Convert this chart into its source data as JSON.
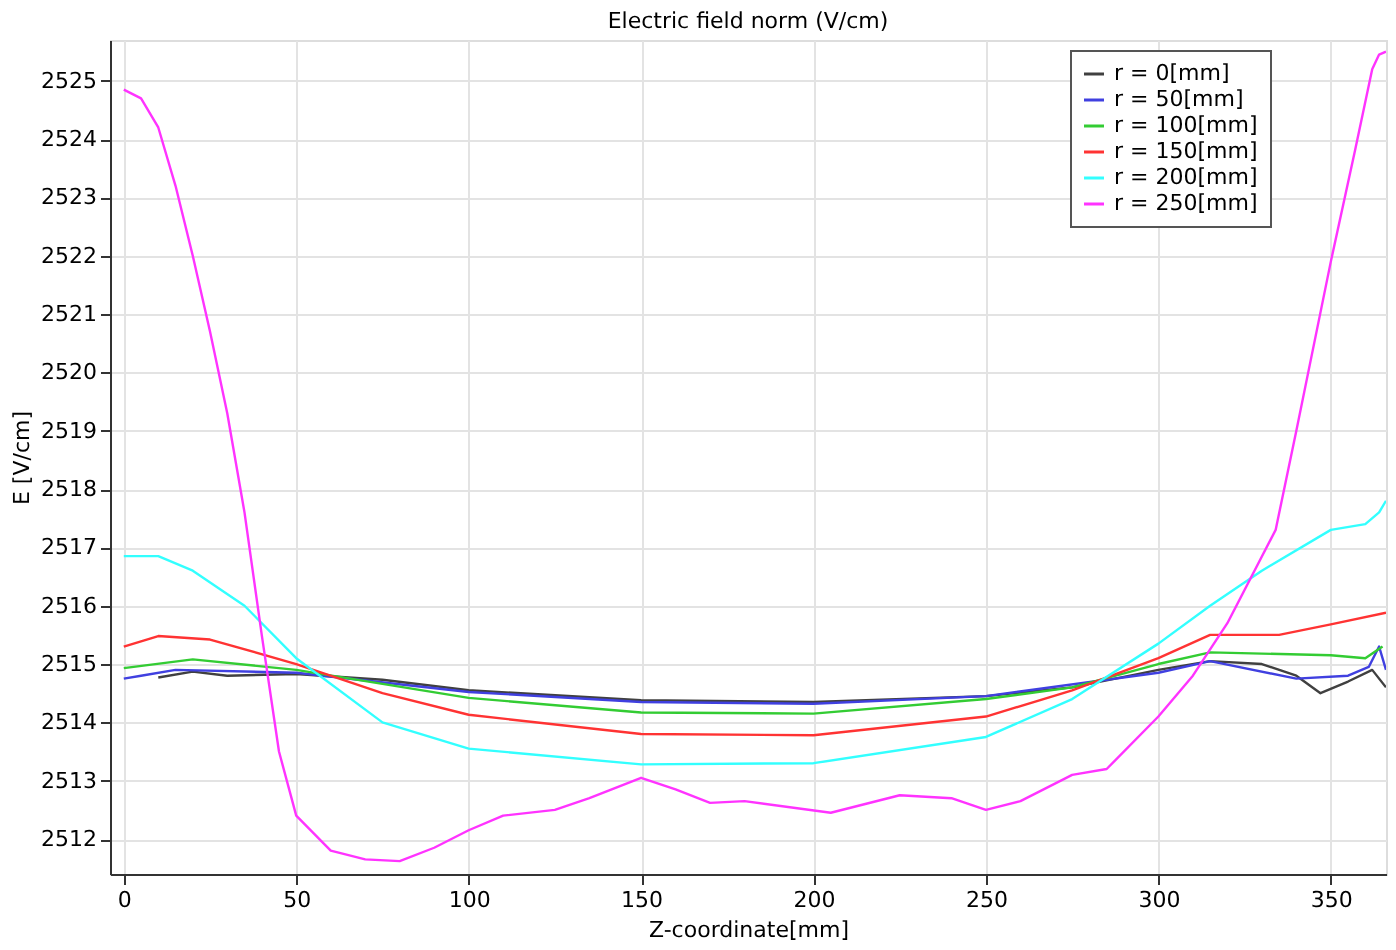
{
  "chart_data": {
    "type": "line",
    "title": "Electric field norm (V/cm)",
    "xlabel": "Z-coordinate[mm]",
    "ylabel": "E [V/cm]",
    "xlim": [
      -4,
      366
    ],
    "xticks": [
      0,
      50,
      100,
      150,
      200,
      250,
      300,
      350
    ],
    "ylim": [
      2511.4,
      2525.7
    ],
    "yticks": [
      2512,
      2513,
      2514,
      2515,
      2516,
      2517,
      2518,
      2519,
      2520,
      2521,
      2522,
      2523,
      2524,
      2525
    ],
    "grid": true,
    "legend": "top right",
    "line_style": "solid",
    "marker": "none",
    "series": [
      {
        "name": "r = 0[mm]",
        "color": "#404040",
        "x": [
          10,
          20,
          30,
          50,
          75,
          100,
          150,
          200,
          250,
          275,
          300,
          315,
          330,
          340,
          347,
          355,
          362,
          366
        ],
        "values": [
          2514.77,
          2514.87,
          2514.8,
          2514.83,
          2514.73,
          2514.55,
          2514.38,
          2514.35,
          2514.45,
          2514.6,
          2514.9,
          2515.05,
          2515.0,
          2514.8,
          2514.5,
          2514.7,
          2514.9,
          2514.6
        ]
      },
      {
        "name": "r = 50[mm]",
        "color": "#4040e0",
        "x": [
          0,
          5,
          15,
          50,
          100,
          150,
          200,
          250,
          300,
          315,
          340,
          355,
          361,
          364,
          366
        ],
        "values": [
          2514.75,
          2514.8,
          2514.9,
          2514.85,
          2514.52,
          2514.35,
          2514.32,
          2514.45,
          2514.85,
          2515.05,
          2514.75,
          2514.8,
          2514.95,
          2515.3,
          2514.9
        ]
      },
      {
        "name": "r = 100[mm]",
        "color": "#33cc33",
        "x": [
          0,
          20,
          50,
          100,
          150,
          200,
          250,
          275,
          300,
          315,
          350,
          360,
          365
        ],
        "values": [
          2514.93,
          2515.08,
          2514.9,
          2514.42,
          2514.17,
          2514.15,
          2514.4,
          2514.6,
          2515.0,
          2515.2,
          2515.15,
          2515.1,
          2515.3
        ]
      },
      {
        "name": "r = 150[mm]",
        "color": "#ff3333",
        "x": [
          0,
          10,
          25,
          50,
          75,
          100,
          150,
          200,
          250,
          275,
          300,
          315,
          335,
          350,
          366
        ],
        "values": [
          2515.3,
          2515.48,
          2515.42,
          2515.0,
          2514.5,
          2514.13,
          2513.8,
          2513.78,
          2514.1,
          2514.55,
          2515.1,
          2515.5,
          2515.5,
          2515.68,
          2515.88
        ]
      },
      {
        "name": "r = 200[mm]",
        "color": "#33ffff",
        "x": [
          0,
          10,
          20,
          35,
          50,
          75,
          100,
          150,
          200,
          250,
          275,
          300,
          315,
          330,
          350,
          360,
          364,
          366
        ],
        "values": [
          2516.85,
          2516.85,
          2516.6,
          2516.0,
          2515.1,
          2514.0,
          2513.55,
          2513.28,
          2513.3,
          2513.75,
          2514.4,
          2515.35,
          2516.0,
          2516.6,
          2517.3,
          2517.4,
          2517.6,
          2517.8
        ]
      },
      {
        "name": "r = 250[mm]",
        "color": "#ff33ff",
        "x": [
          0,
          5,
          10,
          15,
          20,
          25,
          30,
          35,
          40,
          45,
          50,
          60,
          70,
          80,
          90,
          100,
          110,
          125,
          135,
          150,
          160,
          170,
          180,
          205,
          225,
          240,
          250,
          260,
          275,
          285,
          300,
          310,
          320,
          334,
          340,
          350,
          357,
          362,
          364,
          366
        ],
        "values": [
          2524.85,
          2524.7,
          2524.2,
          2523.2,
          2522.0,
          2520.7,
          2519.3,
          2517.6,
          2515.5,
          2513.5,
          2512.4,
          2511.8,
          2511.65,
          2511.62,
          2511.85,
          2512.15,
          2512.4,
          2512.5,
          2512.7,
          2513.05,
          2512.85,
          2512.62,
          2512.65,
          2512.45,
          2512.75,
          2512.7,
          2512.5,
          2512.65,
          2513.1,
          2513.2,
          2514.1,
          2514.8,
          2515.7,
          2517.3,
          2519.0,
          2521.9,
          2523.8,
          2525.2,
          2525.45,
          2525.5
        ]
      }
    ]
  }
}
